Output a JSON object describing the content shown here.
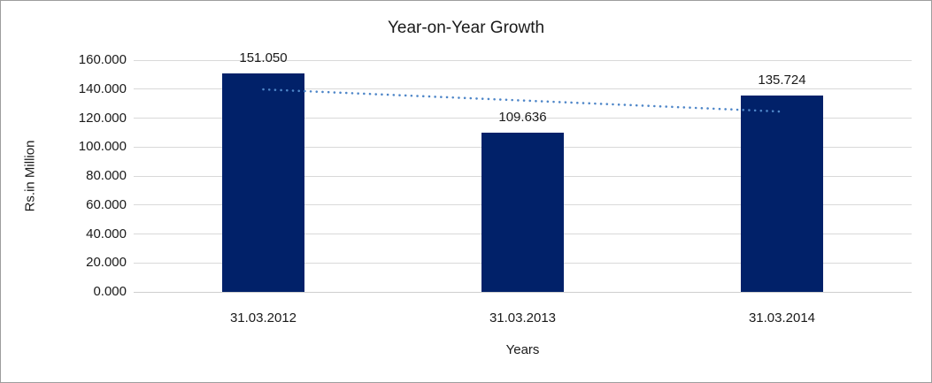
{
  "chart_data": {
    "type": "bar",
    "title": "Year-on-Year Growth",
    "xlabel": "Years",
    "ylabel": "Rs.in Million",
    "categories": [
      "31.03.2012",
      "31.03.2013",
      "31.03.2014"
    ],
    "values": [
      151.05,
      109.636,
      135.724
    ],
    "data_labels": [
      "151.050",
      "109.636",
      "135.724"
    ],
    "ylim": [
      0,
      160
    ],
    "ytick_step": 20,
    "ytick_labels": [
      "0.000",
      "20.000",
      "40.000",
      "60.000",
      "80.000",
      "100.000",
      "120.000",
      "140.000",
      "160.000"
    ],
    "grid": true,
    "legend": "none",
    "trendline": {
      "type": "linear",
      "style": "round-dotted",
      "color": "#4e86c8"
    },
    "colors": {
      "bar": "#012169",
      "gridline": "#d9d9d9",
      "axis_line": "#cfcfcf",
      "text": "#1a1a1a",
      "frame_border": "#9d9d9d"
    }
  }
}
